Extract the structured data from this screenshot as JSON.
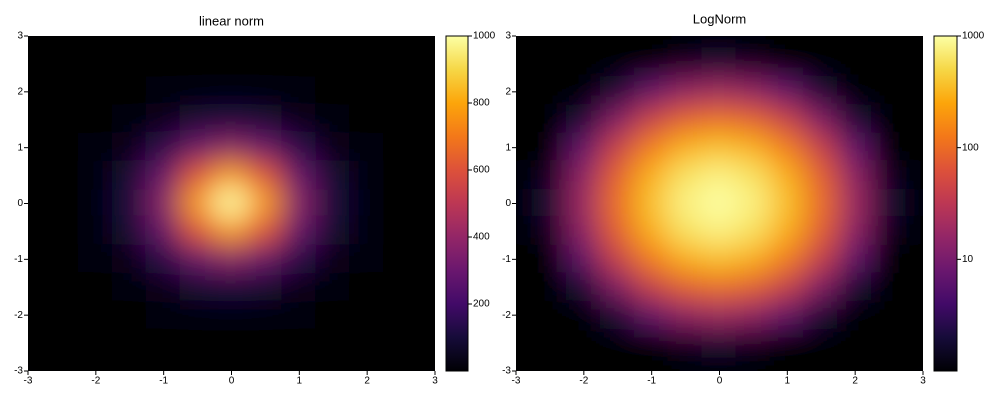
{
  "chart_data": [
    {
      "type": "heatmap",
      "title": "linear norm",
      "norm": "linear",
      "colormap": "inferno",
      "x": [
        -3,
        -2.5,
        -2,
        -1.5,
        -1,
        -0.5,
        0,
        0.5,
        1,
        1.5,
        2,
        2.5,
        3
      ],
      "y": [
        3,
        2.5,
        2,
        1.5,
        1,
        0.5,
        0,
        -0.5,
        -1,
        -1.5,
        -2,
        -2.5,
        -3
      ],
      "values": [
        [
          0.0,
          0.0,
          0.0,
          0.0,
          0.0,
          0.1,
          0.1,
          0.1,
          0.0,
          0.0,
          0.0,
          0.0,
          0.0
        ],
        [
          0.0,
          0.0,
          0.0,
          0.2,
          0.7,
          1.5,
          1.9,
          1.5,
          0.7,
          0.2,
          0.0,
          0.0,
          0.0
        ],
        [
          0.0,
          0.0,
          0.3,
          1.9,
          6.7,
          14.3,
          18.3,
          14.3,
          6.7,
          1.9,
          0.3,
          0.0,
          0.0
        ],
        [
          0.0,
          0.2,
          1.9,
          11.1,
          38.8,
          82.1,
          105.4,
          82.1,
          38.8,
          11.1,
          1.9,
          0.2,
          0.0
        ],
        [
          0.0,
          0.7,
          6.7,
          38.8,
          135.3,
          286.5,
          367.9,
          286.5,
          135.3,
          38.8,
          6.7,
          0.7,
          0.0
        ],
        [
          0.1,
          1.5,
          14.3,
          82.1,
          286.5,
          606.5,
          778.8,
          606.5,
          286.5,
          82.1,
          14.3,
          1.5,
          0.1
        ],
        [
          0.1,
          1.9,
          18.3,
          105.4,
          367.9,
          778.8,
          1000,
          778.8,
          367.9,
          105.4,
          18.3,
          1.9,
          0.1
        ],
        [
          0.1,
          1.5,
          14.3,
          82.1,
          286.5,
          606.5,
          778.8,
          606.5,
          286.5,
          82.1,
          14.3,
          1.5,
          0.1
        ],
        [
          0.0,
          0.7,
          6.7,
          38.8,
          135.3,
          286.5,
          367.9,
          286.5,
          135.3,
          38.8,
          6.7,
          0.7,
          0.0
        ],
        [
          0.0,
          0.2,
          1.9,
          11.1,
          38.8,
          82.1,
          105.4,
          82.1,
          38.8,
          11.1,
          1.9,
          0.2,
          0.0
        ],
        [
          0.0,
          0.0,
          0.3,
          1.9,
          6.7,
          14.3,
          18.3,
          14.3,
          6.7,
          1.9,
          0.3,
          0.0,
          0.0
        ],
        [
          0.0,
          0.0,
          0.0,
          0.2,
          0.7,
          1.5,
          1.9,
          1.5,
          0.7,
          0.2,
          0.0,
          0.0,
          0.0
        ],
        [
          0.0,
          0.0,
          0.0,
          0.0,
          0.0,
          0.1,
          0.1,
          0.1,
          0.0,
          0.0,
          0.0,
          0.0,
          0.0
        ]
      ],
      "xlim": [
        -3,
        3
      ],
      "ylim": [
        -3,
        3
      ],
      "xticks": [
        -3,
        -2,
        -1,
        0,
        1,
        2,
        3
      ],
      "yticks": [
        -3,
        -2,
        -1,
        0,
        1,
        2,
        3
      ],
      "clim": [
        0,
        1000
      ],
      "cticks": [
        200,
        400,
        600,
        800,
        1000
      ]
    },
    {
      "type": "heatmap",
      "title": "LogNorm",
      "norm": "log",
      "colormap": "inferno",
      "x": [
        -3,
        -2.5,
        -2,
        -1.5,
        -1,
        -0.5,
        0,
        0.5,
        1,
        1.5,
        2,
        2.5,
        3
      ],
      "y": [
        3,
        2.5,
        2,
        1.5,
        1,
        0.5,
        0,
        -0.5,
        -1,
        -1.5,
        -2,
        -2.5,
        -3
      ],
      "values": [
        [
          0.0,
          0.0,
          0.0,
          0.0,
          0.0,
          0.1,
          0.1,
          0.1,
          0.0,
          0.0,
          0.0,
          0.0,
          0.0
        ],
        [
          0.0,
          0.0,
          0.0,
          0.2,
          0.7,
          1.5,
          1.9,
          1.5,
          0.7,
          0.2,
          0.0,
          0.0,
          0.0
        ],
        [
          0.0,
          0.0,
          0.3,
          1.9,
          6.7,
          14.3,
          18.3,
          14.3,
          6.7,
          1.9,
          0.3,
          0.0,
          0.0
        ],
        [
          0.0,
          0.2,
          1.9,
          11.1,
          38.8,
          82.1,
          105.4,
          82.1,
          38.8,
          11.1,
          1.9,
          0.2,
          0.0
        ],
        [
          0.0,
          0.7,
          6.7,
          38.8,
          135.3,
          286.5,
          367.9,
          286.5,
          135.3,
          38.8,
          6.7,
          0.7,
          0.0
        ],
        [
          0.1,
          1.5,
          14.3,
          82.1,
          286.5,
          606.5,
          778.8,
          606.5,
          286.5,
          82.1,
          14.3,
          1.5,
          0.1
        ],
        [
          0.1,
          1.9,
          18.3,
          105.4,
          367.9,
          778.8,
          1000,
          778.8,
          367.9,
          105.4,
          18.3,
          1.9,
          0.1
        ],
        [
          0.1,
          1.5,
          14.3,
          82.1,
          286.5,
          606.5,
          778.8,
          606.5,
          286.5,
          82.1,
          14.3,
          1.5,
          0.1
        ],
        [
          0.0,
          0.7,
          6.7,
          38.8,
          135.3,
          286.5,
          367.9,
          286.5,
          135.3,
          38.8,
          6.7,
          0.7,
          0.0
        ],
        [
          0.0,
          0.2,
          1.9,
          11.1,
          38.8,
          82.1,
          105.4,
          82.1,
          38.8,
          11.1,
          1.9,
          0.2,
          0.0
        ],
        [
          0.0,
          0.0,
          0.3,
          1.9,
          6.7,
          14.3,
          18.3,
          14.3,
          6.7,
          1.9,
          0.3,
          0.0,
          0.0
        ],
        [
          0.0,
          0.0,
          0.0,
          0.2,
          0.7,
          1.5,
          1.9,
          1.5,
          0.7,
          0.2,
          0.0,
          0.0,
          0.0
        ],
        [
          0.0,
          0.0,
          0.0,
          0.0,
          0.0,
          0.1,
          0.1,
          0.1,
          0.0,
          0.0,
          0.0,
          0.0,
          0.0
        ]
      ],
      "xlim": [
        -3,
        3
      ],
      "ylim": [
        -3,
        3
      ],
      "xticks": [
        -3,
        -2,
        -1,
        0,
        1,
        2,
        3
      ],
      "yticks": [
        -3,
        -2,
        -1,
        0,
        1,
        2,
        3
      ],
      "clim": [
        1,
        1000
      ],
      "cticks": [
        10,
        100,
        1000
      ]
    }
  ]
}
